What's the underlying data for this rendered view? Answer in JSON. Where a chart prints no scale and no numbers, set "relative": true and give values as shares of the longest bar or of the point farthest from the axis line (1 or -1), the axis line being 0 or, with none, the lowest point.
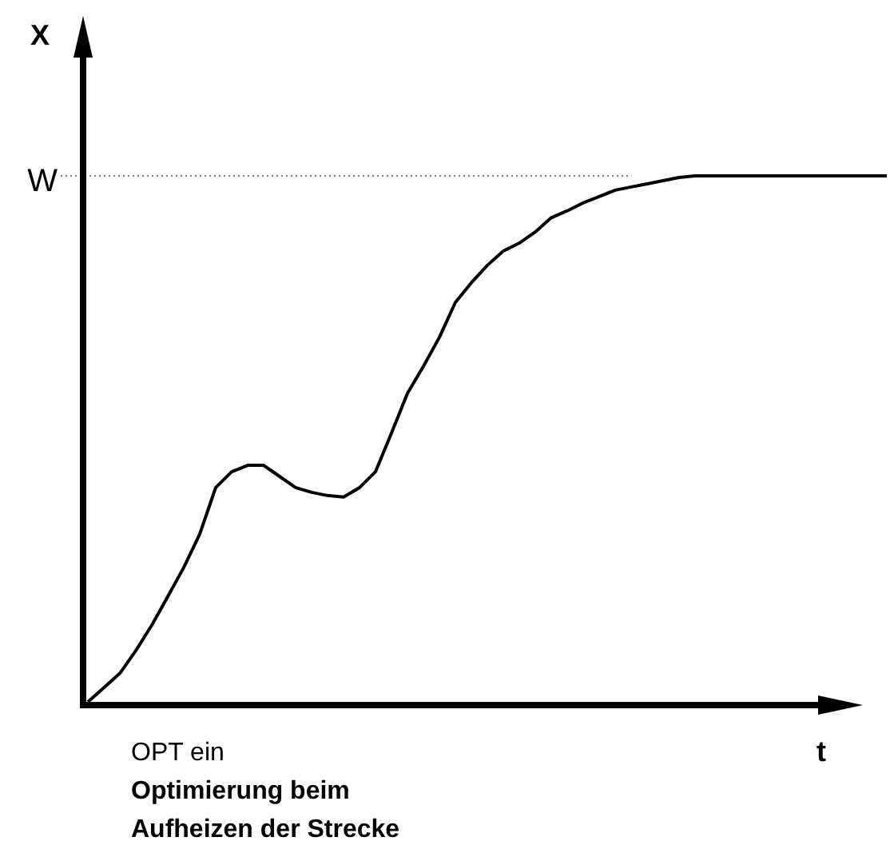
{
  "chart_data": {
    "type": "line",
    "xlabel": "t",
    "ylabel": "X",
    "relative": true,
    "marker": "none",
    "line_style": "solid",
    "color": "#000000",
    "categories": [
      null,
      null,
      null,
      null,
      null,
      null,
      null,
      null,
      null,
      null,
      null,
      null,
      null,
      null,
      null,
      null,
      null,
      null,
      null,
      null,
      null,
      null,
      null,
      null,
      null,
      null,
      null,
      null,
      null,
      null,
      null,
      null,
      null,
      null,
      null,
      null,
      null,
      null,
      null,
      null,
      null,
      null,
      null,
      null,
      null,
      null,
      null,
      null,
      null,
      null,
      null
    ],
    "values": [
      0.006,
      0.033,
      0.06,
      0.103,
      0.151,
      0.205,
      0.26,
      0.323,
      0.411,
      0.441,
      0.453,
      0.453,
      0.432,
      0.411,
      0.402,
      0.396,
      0.393,
      0.411,
      0.441,
      0.514,
      0.589,
      0.64,
      0.695,
      0.761,
      0.798,
      0.831,
      0.858,
      0.873,
      0.894,
      0.921,
      0.934,
      0.949,
      0.961,
      0.973,
      0.979,
      0.985,
      0.991,
      0.997,
      1,
      1,
      1,
      1,
      1,
      1,
      1,
      1,
      1,
      1,
      1,
      1,
      1
    ],
    "ref_lines": [
      {
        "axis": "y",
        "value": 1,
        "label": "W",
        "color": "#808080",
        "line_style": "dotted"
      }
    ],
    "annotations": [
      "OPT ein",
      "Optimierung beim\nAufheizen der Strecke"
    ]
  }
}
